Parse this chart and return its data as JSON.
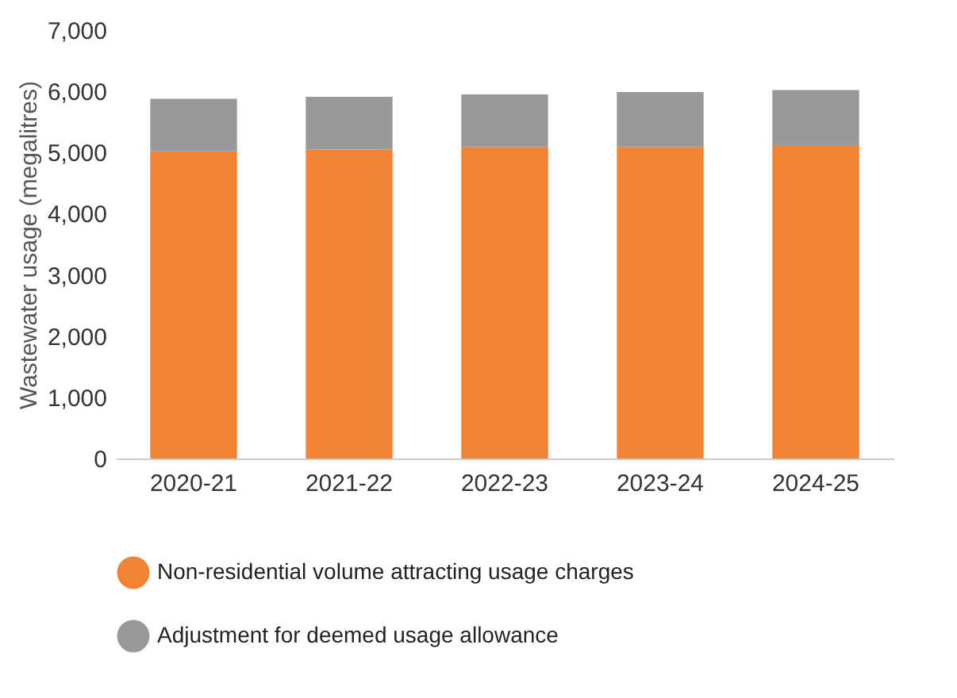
{
  "chart_data": {
    "type": "bar",
    "ylabel": "Wastewater usage (megalitres)",
    "categories": [
      "2020-21",
      "2021-22",
      "2022-23",
      "2023-24",
      "2024-25"
    ],
    "stacked": true,
    "series": [
      {
        "name": "Non-residential volume attracting usage charges",
        "color": "#f28234",
        "values": [
          5020,
          5050,
          5090,
          5090,
          5120
        ]
      },
      {
        "name": "Adjustment for deemed usage allowance",
        "color": "#999999",
        "values": [
          860,
          860,
          860,
          900,
          900
        ]
      }
    ],
    "ylim": [
      0,
      7000
    ],
    "yticks": [
      0,
      {
        "value": 1000,
        "label": "1,000"
      },
      {
        "value": 2000,
        "label": "2,000"
      },
      {
        "value": 3000,
        "label": "3,000"
      },
      {
        "value": 4000,
        "label": "4,000"
      },
      {
        "value": 5000,
        "label": "5,000"
      },
      {
        "value": 6000,
        "label": "6,000"
      },
      {
        "value": 7000,
        "label": "7,000"
      }
    ],
    "grid": false,
    "legend": "bottom"
  }
}
